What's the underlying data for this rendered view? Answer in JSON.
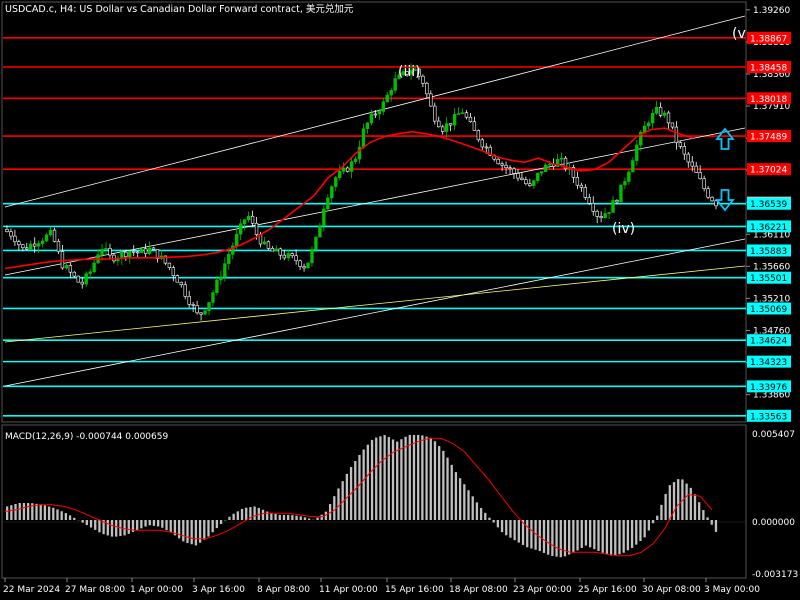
{
  "chart_title": "USDCAD.c, H4:  US Dollar vs Canadian Dollar Forward contract, 美元兑加元",
  "indicator_label": "MACD(12,26,9) -0.000744 0.000659",
  "colors": {
    "background": "#000000",
    "bull_candle": "#00c000",
    "bear_candle": "#ffffff",
    "red_level": "#ff0000",
    "cyan_level": "#00ffff",
    "moving_average": "#ff0000",
    "channel": "#ffffff",
    "trendline": "#ffff66",
    "histogram": "#c0c0c0",
    "signal": "#ff0000",
    "arrow": "#00c8ff"
  },
  "price_axis_labels": [
    "1.39260",
    "1.38810",
    "1.38360",
    "1.37910",
    "1.37460",
    "1.37010",
    "1.36560",
    "1.36110",
    "1.35660",
    "1.35210",
    "1.34760",
    "1.34310",
    "1.33860"
  ],
  "red_levels": [
    "1.38867",
    "1.38458",
    "1.38018",
    "1.37489",
    "1.37024"
  ],
  "cyan_levels": [
    "1.36539",
    "1.36221",
    "1.35883",
    "1.35501",
    "1.35069",
    "1.34624",
    "1.34323",
    "1.33976",
    "1.33563"
  ],
  "current_price": "1.36554",
  "macd_axis": {
    "top": "0.005407",
    "zero": "0.000000",
    "bottom": "-0.003173"
  },
  "time_labels": [
    "22 Mar 2024",
    "27 Mar 08:00",
    "1 Apr 00:00",
    "3 Apr 16:00",
    "8 Apr 08:00",
    "11 Apr 00:00",
    "15 Apr 16:00",
    "18 Apr 08:00",
    "23 Apr 00:00",
    "25 Apr 16:00",
    "30 Apr 08:00",
    "3 May 00:00"
  ],
  "wave_labels": {
    "iii": "(iii)",
    "iv": "(iv)",
    "v": "(v"
  },
  "chart_data": {
    "type": "line",
    "price_range": [
      1.3356,
      1.393
    ],
    "macd_range": [
      -0.003173,
      0.005407
    ],
    "red_levels": [
      1.38867,
      1.38458,
      1.38018,
      1.37489,
      1.37024
    ],
    "cyan_levels": [
      1.36539,
      1.36221,
      1.35883,
      1.35501,
      1.35069,
      1.34624,
      1.34323,
      1.33976,
      1.33563
    ],
    "price": [
      1.3618,
      1.361,
      1.359,
      1.3598,
      1.3605,
      1.3612,
      1.357,
      1.3555,
      1.354,
      1.356,
      1.3595,
      1.3578,
      1.3582,
      1.3588,
      1.3585,
      1.359,
      1.358,
      1.3565,
      1.3545,
      1.352,
      1.3495,
      1.3515,
      1.3545,
      1.358,
      1.361,
      1.364,
      1.361,
      1.359,
      1.3585,
      1.358,
      1.3575,
      1.3565,
      1.36,
      1.366,
      1.369,
      1.37,
      1.3715,
      1.376,
      1.378,
      1.3795,
      1.3825,
      1.3835,
      1.3845,
      1.3825,
      1.378,
      1.376,
      1.377,
      1.3785,
      1.376,
      1.374,
      1.3725,
      1.371,
      1.37,
      1.369,
      1.3675,
      1.37,
      1.371,
      1.3715,
      1.37,
      1.368,
      1.366,
      1.3635,
      1.3645,
      1.3665,
      1.37,
      1.374,
      1.377,
      1.3785,
      1.3775,
      1.374,
      1.3715,
      1.3695,
      1.367,
      1.3655
    ],
    "moving_average": [
      1.3563,
      1.3566,
      1.3569,
      1.3572,
      1.3574,
      1.3575,
      1.3576,
      1.3576,
      1.3577,
      1.3578,
      1.3578,
      1.3578,
      1.3579,
      1.358,
      1.3582,
      1.3585,
      1.359,
      1.3598,
      1.3608,
      1.362,
      1.3635,
      1.365,
      1.3665,
      1.369,
      1.3705,
      1.3725,
      1.374,
      1.3748,
      1.3752,
      1.3755,
      1.3752,
      1.3748,
      1.3742,
      1.3735,
      1.3728,
      1.372,
      1.3715,
      1.3712,
      1.3718,
      1.371,
      1.3705,
      1.37,
      1.3702,
      1.3712,
      1.373,
      1.3748,
      1.3758,
      1.376,
      1.3752,
      1.3746
    ],
    "macd_histogram": [
      0.0008,
      0.001,
      0.001,
      0.0009,
      0.0007,
      0.0004,
      0.0,
      -0.0004,
      -0.0008,
      -0.001,
      -0.0009,
      -0.0006,
      -0.0003,
      -0.0004,
      -0.0008,
      -0.0013,
      -0.0015,
      -0.001,
      -0.0003,
      0.0003,
      0.0007,
      0.0008,
      0.0005,
      0.0003,
      0.0003,
      0.0002,
      0.0,
      0.0005,
      0.0018,
      0.003,
      0.004,
      0.0048,
      0.005,
      0.0046,
      0.005,
      0.005,
      0.0048,
      0.004,
      0.0028,
      0.0018,
      0.0008,
      0.0,
      -0.0008,
      -0.0012,
      -0.0016,
      -0.0018,
      -0.0021,
      -0.0022,
      -0.0019,
      -0.0015,
      -0.0018,
      -0.0021,
      -0.002,
      -0.0016,
      -0.001,
      0.0002,
      0.002,
      0.0025,
      0.0018,
      0.0005,
      -0.0007
    ],
    "macd_signal": [
      0.0005,
      0.0006,
      0.0008,
      0.0009,
      0.0009,
      0.0008,
      0.0006,
      0.0003,
      0.0,
      -0.0003,
      -0.0005,
      -0.0006,
      -0.0006,
      -0.0006,
      -0.0007,
      -0.0009,
      -0.0011,
      -0.0011,
      -0.0009,
      -0.0006,
      -0.0002,
      0.0002,
      0.0004,
      0.0004,
      0.0004,
      0.0003,
      0.0002,
      0.0002,
      0.0006,
      0.0013,
      0.002,
      0.0028,
      0.0035,
      0.004,
      0.0043,
      0.0046,
      0.0048,
      0.0048,
      0.0045,
      0.004,
      0.0032,
      0.0024,
      0.0015,
      0.0006,
      -0.0002,
      -0.0008,
      -0.0013,
      -0.0017,
      -0.0019,
      -0.0019,
      -0.0019,
      -0.002,
      -0.0021,
      -0.0021,
      -0.0019,
      -0.0014,
      -0.0005,
      0.0008,
      0.0015,
      0.0014,
      0.0006
    ]
  }
}
